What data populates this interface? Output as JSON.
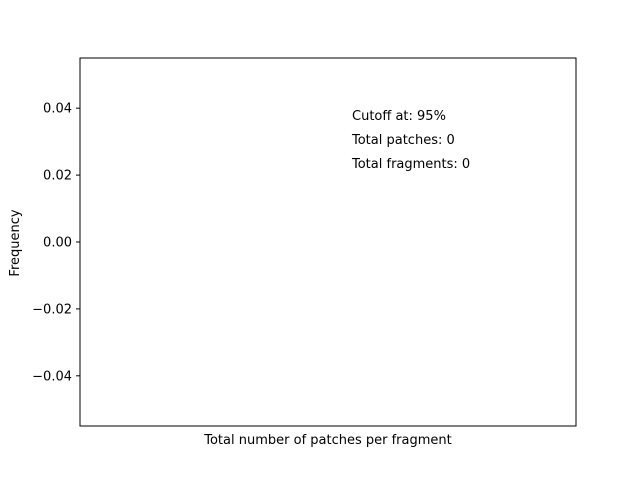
{
  "chart_data": {
    "type": "bar",
    "title": "",
    "xlabel": "Total number of patches per fragment",
    "ylabel": "Frequency",
    "ylim": [
      -0.055,
      0.055
    ],
    "yticks": [
      0.04,
      0.02,
      0.0,
      -0.02,
      -0.04
    ],
    "ytick_labels": [
      "0.04",
      "0.02",
      "0.00",
      "−0.02",
      "−0.04"
    ],
    "xticks": [],
    "categories": [],
    "values": [],
    "grid": false,
    "annotations": [
      "Cutoff at: 95%",
      "Total patches: 0",
      "Total fragments: 0"
    ]
  }
}
